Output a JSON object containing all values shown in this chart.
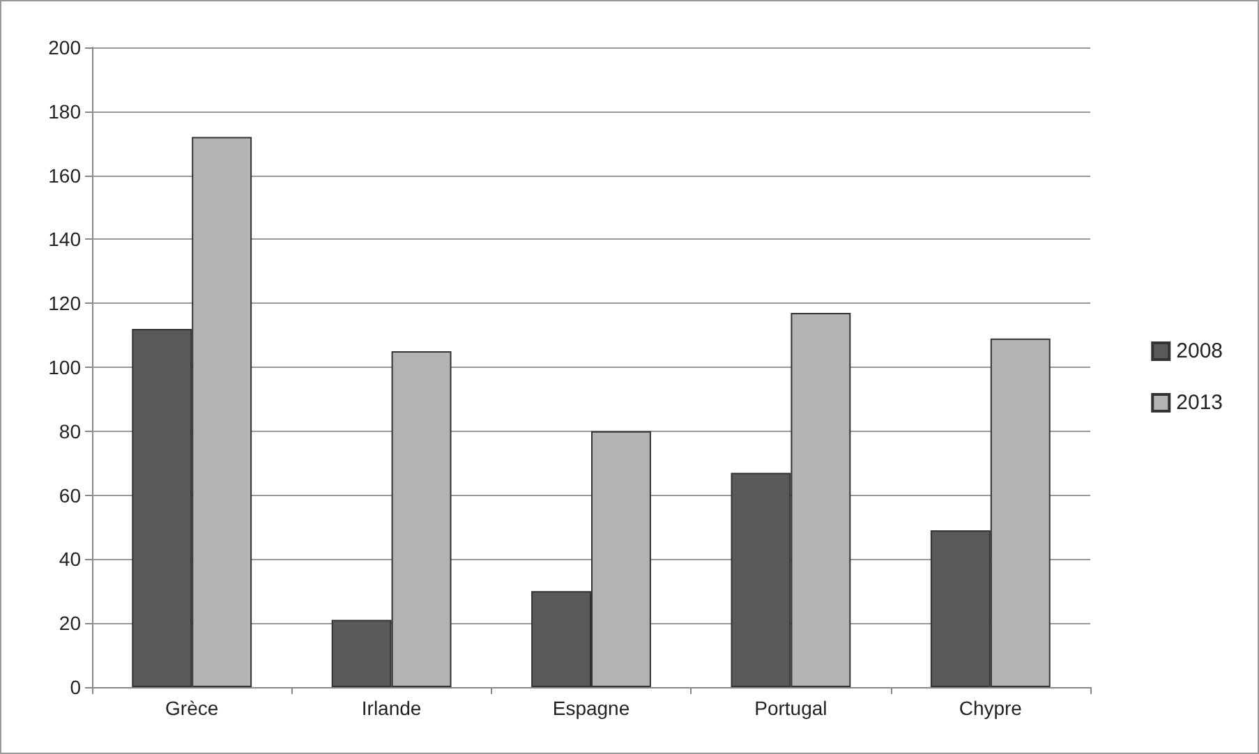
{
  "chart_data": {
    "type": "bar",
    "categories": [
      "Grèce",
      "Irlande",
      "Espagne",
      "Portugal",
      "Chypre"
    ],
    "series": [
      {
        "name": "2008",
        "color": "#595959",
        "values": [
          112,
          21,
          30,
          67,
          49
        ]
      },
      {
        "name": "2013",
        "color": "#b3b3b3",
        "values": [
          172,
          105,
          80,
          117,
          109
        ]
      }
    ],
    "ylim": [
      0,
      200
    ],
    "yticks": [
      0,
      20,
      40,
      60,
      80,
      100,
      120,
      140,
      160,
      180,
      200
    ],
    "grid": "y",
    "legend": "right"
  }
}
